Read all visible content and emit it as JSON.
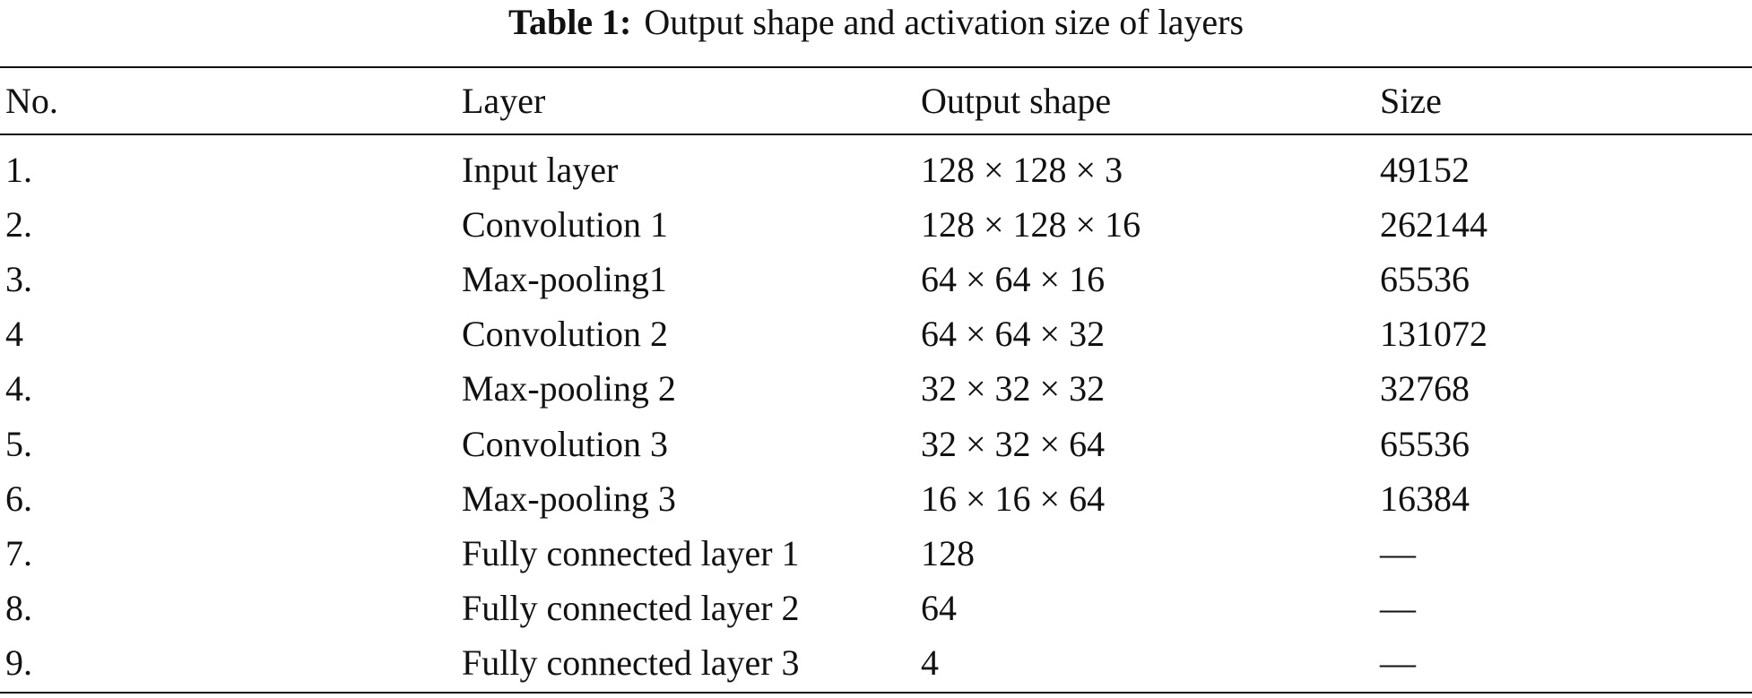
{
  "caption": {
    "label": "Table 1:",
    "text": "Output shape and activation size of layers"
  },
  "table": {
    "header": [
      "No.",
      "Layer",
      "Output shape",
      "Size"
    ],
    "rows": [
      [
        "1.",
        "Input layer",
        "128 × 128 × 3",
        "49152"
      ],
      [
        "2.",
        "Convolution 1",
        "128 × 128 × 16",
        "262144"
      ],
      [
        "3.",
        "Max-pooling1",
        "64 × 64 × 16",
        "65536"
      ],
      [
        "4",
        "Convolution 2",
        "64 × 64 × 32",
        "131072"
      ],
      [
        "4.",
        "Max-pooling 2",
        "32 × 32 × 32",
        "32768"
      ],
      [
        "5.",
        "Convolution 3",
        "32 × 32 × 64",
        "65536"
      ],
      [
        "6.",
        "Max-pooling 3",
        "16 × 16 × 64",
        "16384"
      ],
      [
        "7.",
        "Fully connected layer 1",
        "128",
        "—"
      ],
      [
        "8.",
        "Fully connected layer 2",
        "64",
        "—"
      ],
      [
        "9.",
        "Fully connected layer 3",
        "4",
        "—"
      ]
    ]
  }
}
